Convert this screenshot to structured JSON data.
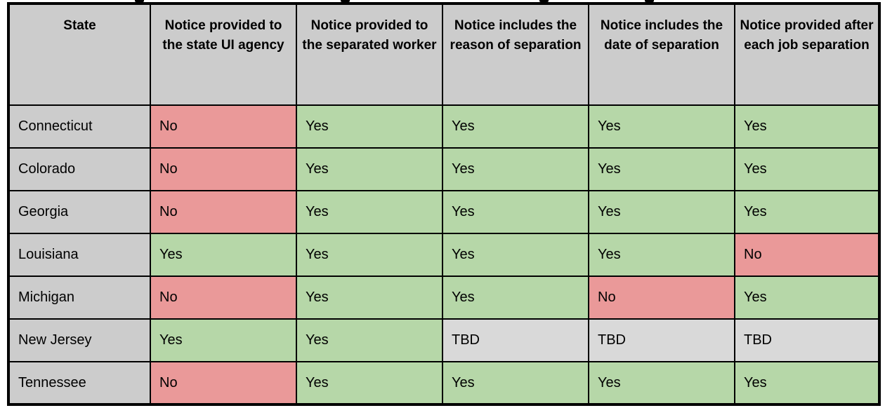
{
  "chart_data": {
    "type": "table",
    "columns": [
      {
        "key": "state",
        "label": "State"
      },
      {
        "key": "notice-state-ui-agency",
        "label": "Notice provided to the state UI agency"
      },
      {
        "key": "notice-separated-worker",
        "label": "Notice provided to the separated worker"
      },
      {
        "key": "notice-reason-of-separation",
        "label": "Notice includes the reason of separation"
      },
      {
        "key": "notice-date-of-separation",
        "label": "Notice includes the date of separation"
      },
      {
        "key": "notice-after-each-job-separation",
        "label": "Notice provided after each job separation"
      }
    ],
    "rows": [
      {
        "state": "Connecticut",
        "values": [
          "No",
          "Yes",
          "Yes",
          "Yes",
          "Yes"
        ]
      },
      {
        "state": "Colorado",
        "values": [
          "No",
          "Yes",
          "Yes",
          "Yes",
          "Yes"
        ]
      },
      {
        "state": "Georgia",
        "values": [
          "No",
          "Yes",
          "Yes",
          "Yes",
          "Yes"
        ]
      },
      {
        "state": "Louisiana",
        "values": [
          "Yes",
          "Yes",
          "Yes",
          "Yes",
          "No"
        ]
      },
      {
        "state": "Michigan",
        "values": [
          "No",
          "Yes",
          "Yes",
          "No",
          "Yes"
        ]
      },
      {
        "state": "New Jersey",
        "values": [
          "Yes",
          "Yes",
          "TBD",
          "TBD",
          "TBD"
        ]
      },
      {
        "state": "Tennessee",
        "values": [
          "No",
          "Yes",
          "Yes",
          "Yes",
          "Yes"
        ]
      }
    ]
  },
  "colors": {
    "yes_bg": "#b6d7a8",
    "no_bg": "#ea9999",
    "tbd_bg": "#d9d9d9",
    "header_bg": "#cccccc",
    "state_bg": "#cccccc",
    "border": "#000000"
  }
}
